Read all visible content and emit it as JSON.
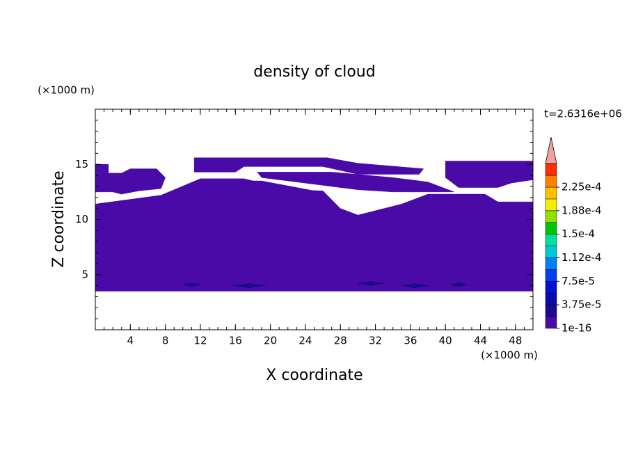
{
  "chart_data": {
    "type": "contour",
    "title": "density of cloud",
    "x_label": "X coordinate",
    "y_label": "Z coordinate",
    "x_unit": "(×1000 m)",
    "y_unit": "(×1000 m)",
    "time_label": "t=2.6316e+06",
    "xlim": [
      0,
      50
    ],
    "ylim": [
      0,
      20
    ],
    "xticks": [
      4,
      8,
      12,
      16,
      20,
      24,
      28,
      32,
      36,
      40,
      44,
      48
    ],
    "yticks": [
      5,
      10,
      15
    ],
    "x_minor_step": 1,
    "y_minor_step": 1,
    "colorbar": {
      "levels": [
        1e-16,
        1.875e-05,
        3.75e-05,
        5.625e-05,
        7.5e-05,
        9.375e-05,
        0.0001125,
        0.00013125,
        0.00015,
        0.00016875,
        0.0001875,
        0.00020625,
        0.000225,
        0.00024375,
        0.0002625
      ],
      "colors": [
        "#4a0aa8",
        "#1c0a8c",
        "#0a0aa8",
        "#0010d4",
        "#0040f0",
        "#0080ff",
        "#00c8d8",
        "#00e0a0",
        "#00c800",
        "#90e000",
        "#f0f000",
        "#ffc000",
        "#ff8000",
        "#ff3000"
      ],
      "extend_color": "#f4a0a0",
      "ticks": [
        {
          "value": 1e-16,
          "label": "1e-16"
        },
        {
          "value": 3.75e-05,
          "label": "3.75e-5"
        },
        {
          "value": 7.5e-05,
          "label": "7.5e-5"
        },
        {
          "value": 0.0001125,
          "label": "1.12e-4"
        },
        {
          "value": 0.00015,
          "label": "1.5e-4"
        },
        {
          "value": 0.0001875,
          "label": "1.88e-4"
        },
        {
          "value": 0.000225,
          "label": "2.25e-4"
        }
      ]
    },
    "regions": [
      {
        "level": 1e-16,
        "x": [
          0,
          50,
          50,
          46,
          44.5,
          38,
          35,
          30,
          28,
          26,
          22,
          17,
          12,
          7.5,
          0
        ],
        "z": [
          3.5,
          3.5,
          11.6,
          11.6,
          12.3,
          12.3,
          11.4,
          10.4,
          11,
          12.6,
          12.7,
          13.7,
          13.7,
          12.2,
          11.4
        ]
      },
      {
        "level": 1e-16,
        "x": [
          0,
          1.5,
          1.5,
          3,
          4,
          7,
          8,
          7.5,
          5,
          3,
          2,
          0
        ],
        "z": [
          15,
          15,
          14.2,
          14.2,
          14.6,
          14.6,
          13.8,
          12.8,
          12.6,
          12.3,
          12.5,
          12.5
        ]
      },
      {
        "level": 1e-16,
        "x": [
          11.3,
          26.5,
          30,
          34.5,
          37.5,
          37,
          30,
          26,
          17,
          16,
          11.3
        ],
        "z": [
          15.6,
          15.6,
          15.1,
          14.8,
          14.6,
          14.1,
          14.1,
          14.8,
          14.8,
          14.3,
          14.3
        ]
      },
      {
        "level": 1e-16,
        "x": [
          18.5,
          27,
          34,
          38,
          41,
          34,
          30,
          25,
          19
        ],
        "z": [
          14.3,
          14.3,
          13.8,
          13.4,
          12.5,
          12.5,
          12.7,
          13.2,
          13.8
        ]
      },
      {
        "level": 1e-16,
        "x": [
          40,
          50,
          50,
          47.5,
          46,
          41.5,
          40
        ],
        "z": [
          15.3,
          15.3,
          13.6,
          13.3,
          12.9,
          12.9,
          13.8
        ]
      },
      {
        "level": 1e-16,
        "x": [
          15,
          19,
          25,
          26,
          24,
          20,
          15
        ],
        "z": [
          13.5,
          13.5,
          12.6,
          11.3,
          11.4,
          12.4,
          12.8
        ]
      },
      {
        "level": 1.875e-05,
        "x": [
          10,
          11,
          12,
          11
        ],
        "z": [
          4.1,
          4.3,
          4.1,
          3.9
        ]
      },
      {
        "level": 1.875e-05,
        "x": [
          15.5,
          17.5,
          19.5,
          17.5
        ],
        "z": [
          4.0,
          4.2,
          4.0,
          3.8
        ]
      },
      {
        "level": 1.875e-05,
        "x": [
          30,
          31.5,
          33,
          31.5
        ],
        "z": [
          4.2,
          4.4,
          4.2,
          4.0
        ]
      },
      {
        "level": 1.875e-05,
        "x": [
          35,
          36.5,
          38,
          36.5
        ],
        "z": [
          4.0,
          4.2,
          4.0,
          3.8
        ]
      },
      {
        "level": 1.875e-05,
        "x": [
          40.5,
          41.5,
          42.5,
          41.5
        ],
        "z": [
          4.1,
          4.3,
          4.1,
          3.9
        ]
      }
    ]
  }
}
